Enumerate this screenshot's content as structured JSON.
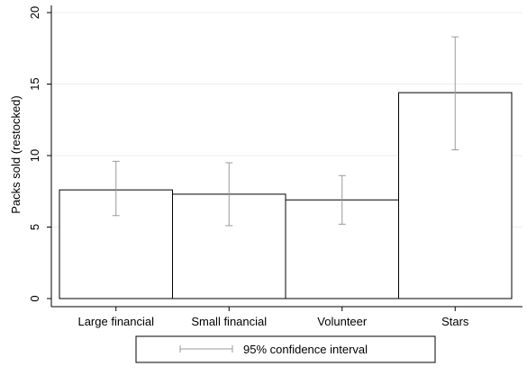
{
  "chart_data": {
    "type": "bar",
    "ylabel": "Packs sold (restocked)",
    "xlabel": "",
    "title": "",
    "categories": [
      "Large financial",
      "Small financial",
      "Volunteer",
      "Stars"
    ],
    "values": [
      7.6,
      7.3,
      6.9,
      14.4
    ],
    "ci_lower": [
      5.8,
      5.1,
      5.2,
      10.4
    ],
    "ci_upper": [
      9.6,
      9.5,
      8.6,
      18.3
    ],
    "ylim": [
      0,
      20
    ],
    "yticks": [
      0,
      5,
      10,
      15,
      20
    ],
    "grid": "horizontal",
    "legend": {
      "position": "bottom",
      "entries": [
        {
          "label": "95% confidence interval",
          "marker": "capped-line"
        }
      ]
    },
    "colors": {
      "bar_fill": "#ffffff",
      "bar_stroke": "#000000",
      "errorbar": "#9a9a9a",
      "grid": "#ececec",
      "axis": "#000000"
    }
  }
}
